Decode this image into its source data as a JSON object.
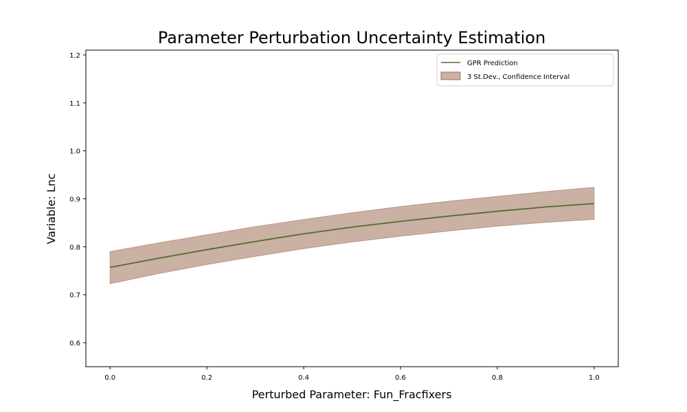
{
  "chart_data": {
    "type": "line",
    "title": "Parameter Perturbation Uncertainty Estimation",
    "xlabel": "Perturbed Parameter: Fun_Fracfixers",
    "ylabel": "Variable: Lnc",
    "xlim": [
      -0.05,
      1.05
    ],
    "ylim": [
      0.55,
      1.21
    ],
    "xticks": [
      "0.0",
      "0.2",
      "0.4",
      "0.6",
      "0.8",
      "1.0"
    ],
    "yticks": [
      "0.6",
      "0.7",
      "0.8",
      "0.9",
      "1.0",
      "1.1",
      "1.2"
    ],
    "grid": false,
    "legend_position": "top-right",
    "series": [
      {
        "name": "GPR Prediction",
        "kind": "line",
        "color": "#556b2f",
        "x": [
          0.0,
          0.1,
          0.2,
          0.3,
          0.4,
          0.5,
          0.6,
          0.7,
          0.8,
          0.9,
          1.0
        ],
        "y": [
          0.757,
          0.776,
          0.794,
          0.811,
          0.827,
          0.841,
          0.853,
          0.864,
          0.874,
          0.883,
          0.89
        ]
      },
      {
        "name": "3 St.Dev., Confidence Interval",
        "kind": "band",
        "color": "#a0705a",
        "x": [
          0.0,
          0.1,
          0.2,
          0.3,
          0.4,
          0.5,
          0.6,
          0.7,
          0.8,
          0.9,
          1.0
        ],
        "lower": [
          0.723,
          0.744,
          0.763,
          0.78,
          0.796,
          0.81,
          0.822,
          0.833,
          0.843,
          0.851,
          0.857
        ],
        "upper": [
          0.79,
          0.808,
          0.825,
          0.842,
          0.857,
          0.871,
          0.884,
          0.895,
          0.905,
          0.915,
          0.924
        ]
      }
    ]
  }
}
